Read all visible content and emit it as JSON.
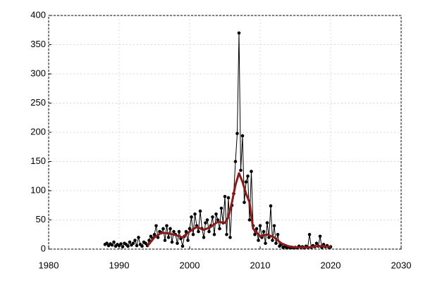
{
  "chart_data": {
    "type": "line",
    "xlim": [
      1980,
      2030
    ],
    "xticks": [
      1980,
      1990,
      2000,
      2010,
      2020,
      2030
    ],
    "ylim": [
      0,
      400
    ],
    "yticks": [
      0,
      50,
      100,
      150,
      200,
      250,
      300,
      350,
      400
    ],
    "grid": true,
    "series": [
      {
        "color": "#000000",
        "markers": true,
        "line_width": 1,
        "x": [
          1988,
          1988.25,
          1988.5,
          1988.75,
          1989,
          1989.25,
          1989.5,
          1989.75,
          1990,
          1990.25,
          1990.5,
          1990.75,
          1991,
          1991.25,
          1991.5,
          1991.75,
          1992,
          1992.25,
          1992.5,
          1992.75,
          1993,
          1993.25,
          1993.5,
          1993.75,
          1994,
          1994.25,
          1994.5,
          1994.75,
          1995,
          1995.25,
          1995.5,
          1995.75,
          1996,
          1996.25,
          1996.5,
          1996.75,
          1997,
          1997.25,
          1997.5,
          1997.75,
          1998,
          1998.25,
          1998.5,
          1998.75,
          1999,
          1999.25,
          1999.5,
          1999.75,
          2000,
          2000.25,
          2000.5,
          2000.75,
          2001,
          2001.25,
          2001.5,
          2001.75,
          2002,
          2002.25,
          2002.5,
          2002.75,
          2003,
          2003.25,
          2003.5,
          2003.75,
          2004,
          2004.25,
          2004.5,
          2004.75,
          2005,
          2005.25,
          2005.5,
          2005.75,
          2006,
          2006.25,
          2006.5,
          2006.75,
          2007,
          2007.25,
          2007.5,
          2007.75,
          2008,
          2008.25,
          2008.5,
          2008.75,
          2009,
          2009.25,
          2009.5,
          2009.75,
          2010,
          2010.25,
          2010.5,
          2010.75,
          2011,
          2011.25,
          2011.5,
          2011.75,
          2012,
          2012.25,
          2012.5,
          2012.75,
          2013,
          2013.25,
          2013.5,
          2013.75,
          2014,
          2014.25,
          2014.5,
          2014.75,
          2015,
          2015.25,
          2015.5,
          2015.75,
          2016,
          2016.25,
          2016.5,
          2016.75,
          2017,
          2017.25,
          2017.5,
          2017.75,
          2018,
          2018.25,
          2018.5,
          2018.75,
          2019,
          2019.25,
          2019.5,
          2019.75,
          2020
        ],
        "values": [
          8,
          10,
          6,
          9,
          7,
          12,
          5,
          8,
          6,
          9,
          4,
          10,
          8,
          5,
          12,
          7,
          10,
          15,
          6,
          20,
          8,
          5,
          12,
          10,
          6,
          15,
          22,
          18,
          25,
          40,
          20,
          30,
          28,
          35,
          15,
          40,
          20,
          35,
          12,
          30,
          25,
          10,
          30,
          18,
          5,
          22,
          30,
          15,
          35,
          55,
          25,
          60,
          40,
          30,
          65,
          35,
          20,
          45,
          50,
          30,
          40,
          55,
          25,
          60,
          50,
          35,
          70,
          45,
          90,
          25,
          88,
          20,
          75,
          95,
          150,
          198,
          370,
          135,
          194,
          80,
          115,
          125,
          50,
          133,
          40,
          25,
          35,
          15,
          40,
          20,
          30,
          10,
          45,
          20,
          74,
          15,
          40,
          10,
          25,
          5,
          8,
          3,
          5,
          2,
          4,
          2,
          3,
          2,
          3,
          2,
          5,
          3,
          4,
          2,
          5,
          3,
          25,
          3,
          6,
          4,
          10,
          5,
          22,
          3,
          8,
          4,
          6,
          3,
          4
        ]
      },
      {
        "color": "#8b1a1a",
        "markers": false,
        "line_width": 3,
        "x": [
          1994,
          1995,
          1996,
          1997,
          1998,
          1999,
          2000,
          2001,
          2002,
          2003,
          2004,
          2005,
          2005.5,
          2006,
          2006.5,
          2007,
          2007.5,
          2008,
          2008.5,
          2009,
          2010,
          2011,
          2012,
          2013,
          2014,
          2015,
          2016,
          2017,
          2018,
          2019,
          2020
        ],
        "values": [
          5,
          20,
          28,
          27,
          24,
          20,
          30,
          38,
          33,
          38,
          47,
          45,
          55,
          80,
          110,
          130,
          115,
          95,
          80,
          35,
          22,
          25,
          20,
          10,
          5,
          3,
          3,
          3,
          5,
          5,
          4
        ]
      }
    ]
  }
}
